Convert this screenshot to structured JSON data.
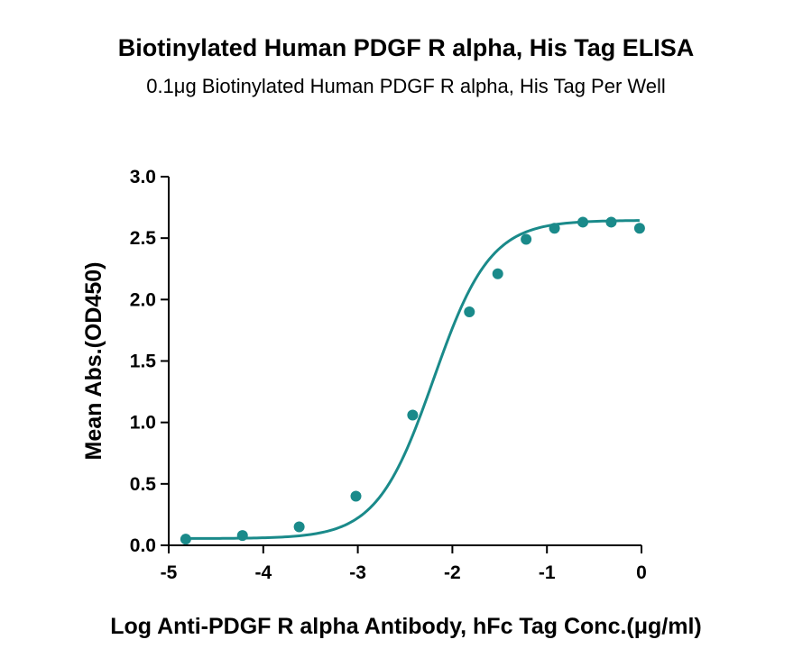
{
  "chart_data": {
    "type": "scatter",
    "title": "Biotinylated Human PDGF R alpha, His Tag ELISA",
    "subtitle": "0.1μg Biotinylated Human PDGF R alpha, His Tag Per Well",
    "xlabel": "Log Anti-PDGF R alpha Antibody, hFc Tag Conc.(μg/ml)",
    "ylabel": "Mean Abs.(OD450)",
    "xlim": [
      -5,
      0
    ],
    "ylim": [
      0,
      3
    ],
    "x_ticks": [
      -5,
      -4,
      -3,
      -2,
      -1,
      0
    ],
    "x_tick_labels": [
      "-5",
      "-4",
      "-3",
      "-2",
      "-1",
      "0"
    ],
    "y_ticks": [
      0,
      0.5,
      1,
      1.5,
      2,
      2.5,
      3
    ],
    "y_tick_labels": [
      "0.0",
      "0.5",
      "1.0",
      "1.5",
      "2.0",
      "2.5",
      "3.0"
    ],
    "grid": false,
    "legend": false,
    "color": "#1a8a8a",
    "series": [
      {
        "x": [
          -4.82,
          -4.22,
          -3.62,
          -3.02,
          -2.42,
          -1.82,
          -1.52,
          -1.22,
          -0.92,
          -0.62,
          -0.32,
          -0.02
        ],
        "y": [
          0.05,
          0.08,
          0.15,
          0.4,
          1.06,
          1.9,
          2.21,
          2.49,
          2.58,
          2.63,
          2.63,
          2.58
        ],
        "fit": "4PL"
      }
    ],
    "fit_curve": {
      "bottom": 0.055,
      "top": 2.645,
      "log_ec50": -2.2,
      "hill": 1.45
    }
  }
}
